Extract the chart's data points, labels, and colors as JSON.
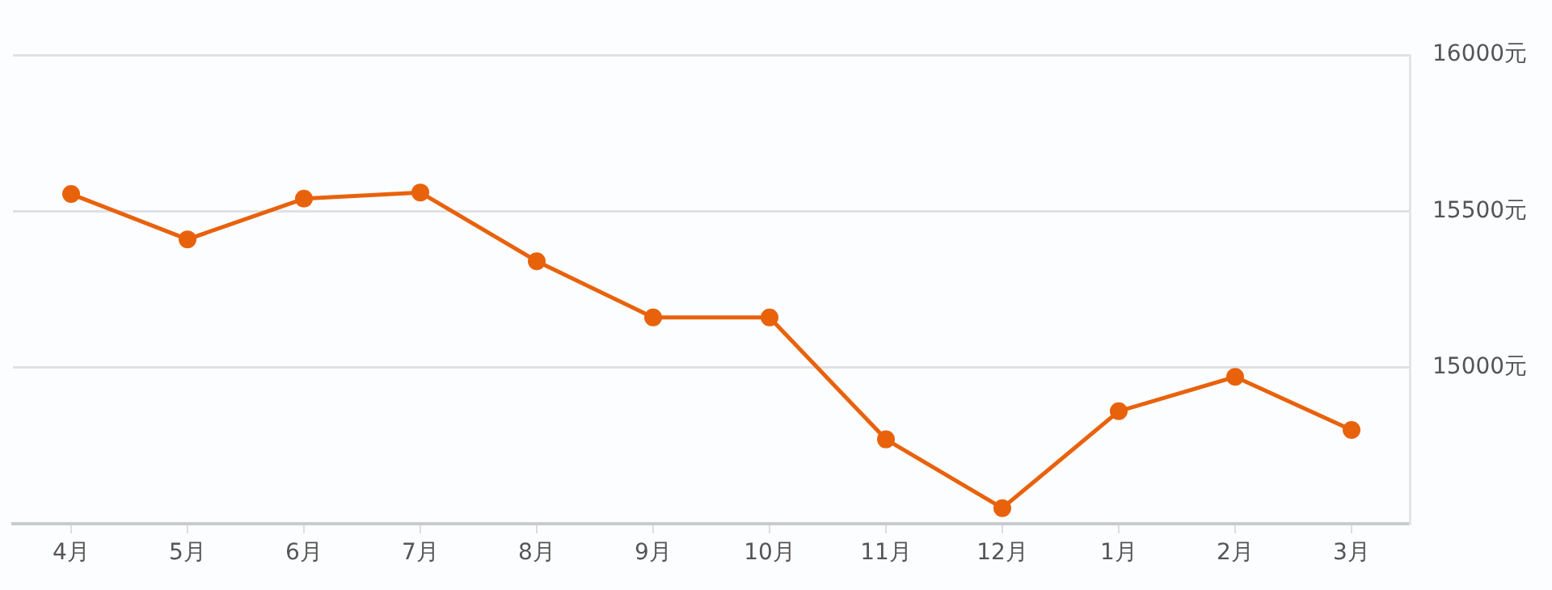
{
  "chart_data": {
    "type": "line",
    "categories": [
      "4月",
      "5月",
      "6月",
      "7月",
      "8月",
      "9月",
      "10月",
      "11月",
      "12月",
      "1月",
      "2月",
      "3月"
    ],
    "series": [
      {
        "color": "#e8620c",
        "values": [
          15555,
          15410,
          15540,
          15560,
          15340,
          15160,
          15160,
          14770,
          14550,
          14860,
          14970,
          14800
        ]
      }
    ],
    "ylim": [
      14500,
      16000
    ],
    "yticks": [
      {
        "value": 14500,
        "label": null
      },
      {
        "value": 15000,
        "label": "15000元"
      },
      {
        "value": 15500,
        "label": "15500元"
      },
      {
        "value": 16000,
        "label": "16000元"
      }
    ],
    "grid": "y",
    "marker": "circle",
    "line_style": "solid",
    "legend": false
  }
}
